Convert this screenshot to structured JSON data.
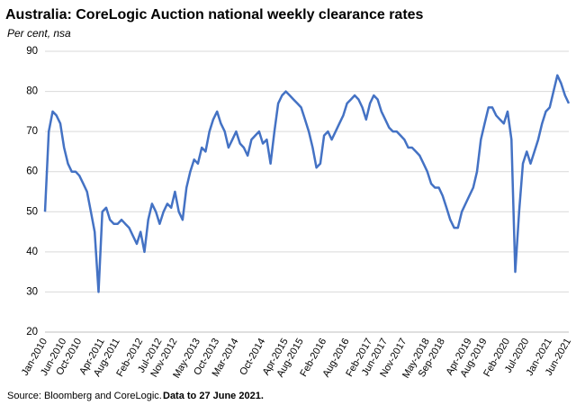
{
  "chart_data": {
    "type": "line",
    "title": "Australia: CoreLogic Auction national weekly clearance rates",
    "subtitle": "Per cent, nsa",
    "source": "Source: Bloomberg and CoreLogic.",
    "note": "Data to 27 June 2021.",
    "categories": [
      "Jan-2010",
      null,
      null,
      null,
      null,
      "Jun-2010",
      null,
      null,
      null,
      "Oct-2010",
      null,
      null,
      null,
      null,
      null,
      "Apr-2011",
      null,
      null,
      null,
      "Aug-2011",
      null,
      null,
      null,
      null,
      null,
      "Feb-2012",
      null,
      null,
      null,
      null,
      "Jul-2012",
      null,
      null,
      null,
      "Nov-2012",
      null,
      null,
      null,
      null,
      null,
      "May-2013",
      null,
      null,
      null,
      null,
      "Oct-2013",
      null,
      null,
      null,
      null,
      "Mar-2014",
      null,
      null,
      null,
      null,
      null,
      null,
      "Oct-2014",
      null,
      null,
      null,
      null,
      null,
      "Apr-2015",
      null,
      null,
      null,
      "Aug-2015",
      null,
      null,
      null,
      null,
      null,
      "Feb-2016",
      null,
      null,
      null,
      null,
      null,
      "Aug-2016",
      null,
      null,
      null,
      null,
      null,
      "Feb-2017",
      null,
      null,
      null,
      "Jun-2017",
      null,
      null,
      null,
      null,
      "Nov-2017",
      null,
      null,
      null,
      null,
      null,
      "May-2018",
      null,
      null,
      null,
      "Sep-2018",
      null,
      null,
      null,
      null,
      null,
      null,
      "Apr-2019",
      null,
      null,
      null,
      "Aug-2019",
      null,
      null,
      null,
      null,
      null,
      "Feb-2020",
      null,
      null,
      null,
      null,
      "Jul-2020",
      null,
      null,
      null,
      null,
      null,
      "Jan-2021",
      null,
      null,
      null,
      null,
      "Jun-2021"
    ],
    "values": [
      50,
      70,
      75,
      74,
      72,
      66,
      62,
      60,
      60,
      59,
      57,
      55,
      50,
      45,
      30,
      50,
      51,
      48,
      47,
      47,
      48,
      47,
      46,
      44,
      42,
      45,
      40,
      48,
      52,
      50,
      47,
      50,
      52,
      51,
      55,
      50,
      48,
      56,
      60,
      63,
      62,
      66,
      65,
      70,
      73,
      75,
      72,
      70,
      66,
      68,
      70,
      67,
      66,
      64,
      68,
      69,
      70,
      67,
      68,
      62,
      70,
      77,
      79,
      80,
      79,
      78,
      77,
      76,
      73,
      70,
      66,
      61,
      62,
      69,
      70,
      68,
      70,
      72,
      74,
      77,
      78,
      79,
      78,
      76,
      73,
      77,
      79,
      78,
      75,
      73,
      71,
      70,
      70,
      69,
      68,
      66,
      66,
      65,
      64,
      62,
      60,
      57,
      56,
      56,
      54,
      51,
      48,
      46,
      46,
      50,
      52,
      54,
      56,
      60,
      68,
      72,
      76,
      76,
      74,
      73,
      72,
      75,
      68,
      35,
      50,
      62,
      65,
      62,
      65,
      68,
      72,
      75,
      76,
      80,
      84,
      82,
      79,
      77
    ],
    "color": "#4472c4",
    "ylim": [
      20,
      90
    ],
    "yticks": [
      20,
      30,
      40,
      50,
      60,
      70,
      80,
      90
    ],
    "grid": true
  }
}
